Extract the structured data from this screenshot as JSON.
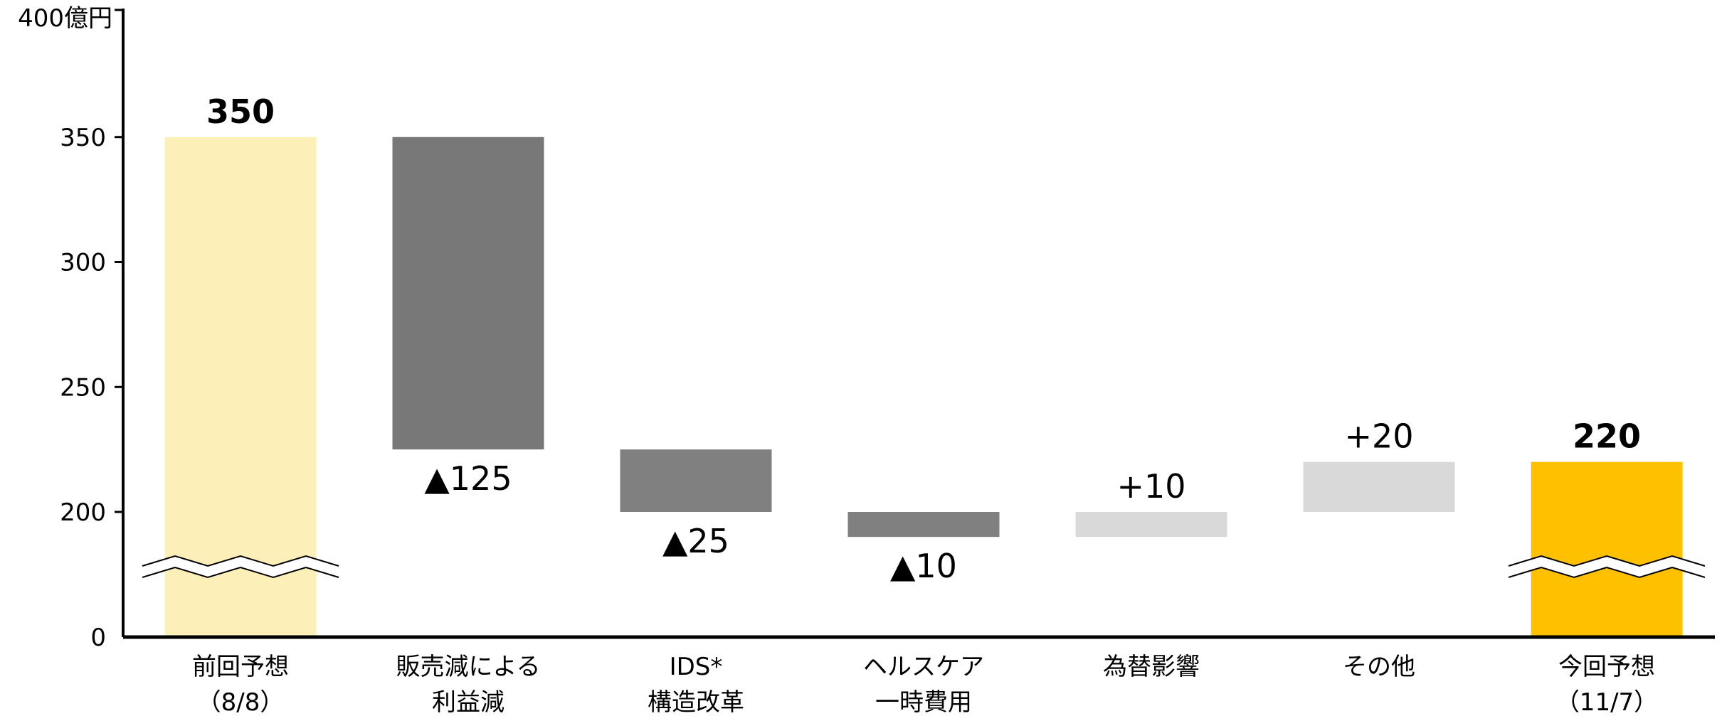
{
  "chart_data": {
    "type": "bar",
    "subtype": "waterfall",
    "ylabel": "400億円",
    "ylim": [
      0,
      400
    ],
    "yticks": [
      "0",
      "200",
      "250",
      "300",
      "350"
    ],
    "axis_break": true,
    "categories": [
      [
        "前回予想",
        "（8/8）"
      ],
      [
        "販売減による",
        "利益減"
      ],
      [
        "IDS*",
        "構造改革"
      ],
      [
        "ヘルスケア",
        "一時費用"
      ],
      [
        "為替影響"
      ],
      [
        "その他"
      ],
      [
        "今回予想",
        "（11/7）"
      ]
    ],
    "bars": [
      {
        "kind": "total",
        "start": 0,
        "end": 350,
        "label": "350",
        "bold": true,
        "color": "#FDEFB8"
      },
      {
        "kind": "decrease",
        "start": 350,
        "end": 225,
        "label": "▲125",
        "bold": false,
        "color": "#787878"
      },
      {
        "kind": "decrease",
        "start": 225,
        "end": 200,
        "label": "▲25",
        "bold": false,
        "color": "#808080"
      },
      {
        "kind": "decrease",
        "start": 200,
        "end": 190,
        "label": "▲10",
        "bold": false,
        "color": "#808080"
      },
      {
        "kind": "increase",
        "start": 190,
        "end": 200,
        "label": "+10",
        "bold": false,
        "color": "#D9D9D9"
      },
      {
        "kind": "increase",
        "start": 200,
        "end": 220,
        "label": "+20",
        "bold": false,
        "color": "#D9D9D9"
      },
      {
        "kind": "total",
        "start": 0,
        "end": 220,
        "label": "220",
        "bold": true,
        "color": "#FFC000"
      }
    ]
  }
}
